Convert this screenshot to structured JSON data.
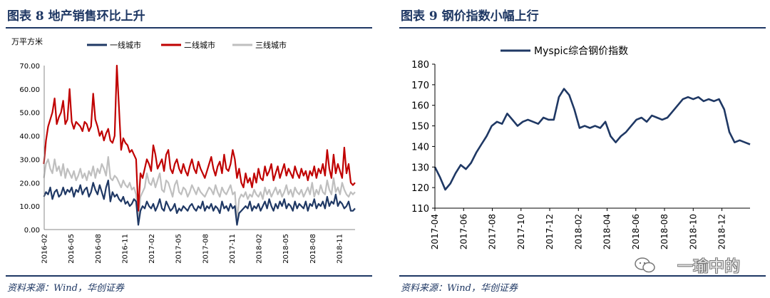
{
  "left": {
    "figure_title": "图表 8   地产销售环比上升",
    "source": "资料来源：Wind，华创证券",
    "unit_label": "万平方米",
    "colors": {
      "series1": "#1f3864",
      "series2": "#c00000",
      "series3": "#bfbfbf",
      "rule": "#1f3864"
    }
  },
  "right": {
    "figure_title": "图表 9   钢价指数小幅上行",
    "source": "资料来源：Wind，华创证券",
    "colors": {
      "series1": "#1f3864",
      "rule": "#1f3864"
    }
  },
  "watermark": {
    "text": "一瑜中的",
    "icon": "wechat-icon"
  },
  "chart_data": [
    {
      "type": "line",
      "title": "地产销售环比上升",
      "ylabel": "万平方米",
      "ylim": [
        0,
        70
      ],
      "yticks": [
        "0.00",
        "10.00",
        "20.00",
        "30.00",
        "40.00",
        "50.00",
        "60.00",
        "70.00"
      ],
      "xticks": [
        "2016-02",
        "2016-05",
        "2016-08",
        "2016-11",
        "2017-02",
        "2017-05",
        "2017-08",
        "2017-11",
        "2018-02",
        "2018-05",
        "2018-08",
        "2018-11"
      ],
      "legend_position": "top",
      "x_start": "2016-02",
      "x": [
        2016.08,
        2016.1,
        2016.12,
        2016.14,
        2016.16,
        2016.18,
        2016.2,
        2016.22,
        2016.24,
        2016.26,
        2016.28,
        2016.3,
        2016.32,
        2016.34,
        2016.36,
        2016.38,
        2016.4,
        2016.42,
        2016.44,
        2016.46,
        2016.48,
        2016.5,
        2016.52,
        2016.54,
        2016.56,
        2016.58,
        2016.6,
        2016.62,
        2016.64,
        2016.66,
        2016.68,
        2016.7,
        2016.72,
        2016.74,
        2016.76,
        2016.78,
        2016.8,
        2016.82,
        2016.84,
        2016.86,
        2016.88,
        2016.9,
        2016.92,
        2016.94,
        2016.96,
        2016.98,
        2017.0,
        2017.02,
        2017.04,
        2017.06,
        2017.08,
        2017.1,
        2017.12,
        2017.14,
        2017.16,
        2017.18,
        2017.2,
        2017.22,
        2017.24,
        2017.26,
        2017.28,
        2017.3,
        2017.32,
        2017.34,
        2017.36,
        2017.38,
        2017.4,
        2017.42,
        2017.44,
        2017.46,
        2017.48,
        2017.5,
        2017.52,
        2017.54,
        2017.56,
        2017.58,
        2017.6,
        2017.62,
        2017.64,
        2017.66,
        2017.68,
        2017.7,
        2017.72,
        2017.74,
        2017.76,
        2017.78,
        2017.8,
        2017.82,
        2017.84,
        2017.86,
        2017.88,
        2017.9,
        2017.92,
        2017.94,
        2017.96,
        2017.98,
        2018.0,
        2018.02,
        2018.04,
        2018.06,
        2018.08,
        2018.1,
        2018.12,
        2018.14,
        2018.16,
        2018.18,
        2018.2,
        2018.22,
        2018.24,
        2018.26,
        2018.28,
        2018.3,
        2018.32,
        2018.34,
        2018.36,
        2018.38,
        2018.4,
        2018.42,
        2018.44,
        2018.46,
        2018.48,
        2018.5,
        2018.52,
        2018.54,
        2018.56,
        2018.58,
        2018.6,
        2018.62,
        2018.64,
        2018.66,
        2018.68,
        2018.7,
        2018.72,
        2018.74,
        2018.76,
        2018.78,
        2018.8,
        2018.82,
        2018.84,
        2018.86,
        2018.88,
        2018.9,
        2018.92,
        2018.94,
        2018.96,
        2018.98
      ],
      "series": [
        {
          "name": "一线城市",
          "values": [
            14,
            16,
            15,
            18,
            13,
            16,
            17,
            14,
            15,
            18,
            15,
            17,
            16,
            18,
            14,
            17,
            16,
            19,
            15,
            17,
            18,
            14,
            16,
            20,
            17,
            15,
            19,
            16,
            13,
            18,
            21,
            12,
            16,
            14,
            15,
            13,
            12,
            14,
            11,
            12,
            10,
            11,
            13,
            12,
            2,
            8,
            10,
            9,
            12,
            10,
            9,
            11,
            8,
            10,
            13,
            9,
            8,
            12,
            10,
            8,
            9,
            11,
            7,
            9,
            8,
            10,
            9,
            8,
            10,
            11,
            9,
            8,
            10,
            9,
            12,
            8,
            10,
            9,
            11,
            8,
            10,
            9,
            7,
            12,
            9,
            10,
            8,
            11,
            9,
            10,
            2,
            7,
            8,
            9,
            10,
            9,
            12,
            8,
            10,
            9,
            11,
            8,
            10,
            12,
            9,
            13,
            10,
            8,
            11,
            9,
            12,
            10,
            13,
            9,
            11,
            10,
            8,
            12,
            9,
            11,
            10,
            9,
            12,
            8,
            11,
            10,
            13,
            9,
            11,
            10,
            12,
            9,
            14,
            10,
            12,
            11,
            15,
            10,
            12,
            11,
            9,
            10,
            12,
            8,
            8,
            9
          ]
        },
        {
          "name": "二线城市",
          "values": [
            28,
            38,
            44,
            47,
            50,
            56,
            45,
            48,
            50,
            55,
            45,
            47,
            60,
            46,
            43,
            46,
            45,
            44,
            42,
            46,
            45,
            42,
            44,
            58,
            47,
            44,
            40,
            42,
            38,
            41,
            43,
            38,
            37,
            40,
            70,
            52,
            34,
            39,
            37,
            36,
            33,
            34,
            32,
            30,
            8,
            24,
            22,
            26,
            30,
            28,
            25,
            36,
            32,
            26,
            28,
            30,
            25,
            32,
            34,
            26,
            24,
            28,
            30,
            26,
            24,
            28,
            25,
            23,
            27,
            30,
            26,
            24,
            29,
            26,
            24,
            22,
            25,
            28,
            31,
            26,
            23,
            27,
            29,
            24,
            32,
            26,
            25,
            28,
            34,
            30,
            22,
            26,
            20,
            18,
            24,
            20,
            22,
            18,
            24,
            20,
            26,
            22,
            21,
            27,
            23,
            25,
            28,
            21,
            24,
            27,
            22,
            25,
            28,
            23,
            26,
            24,
            22,
            27,
            24,
            22,
            26,
            23,
            25,
            21,
            25,
            23,
            27,
            22,
            26,
            24,
            28,
            23,
            34,
            26,
            22,
            32,
            24,
            28,
            25,
            22,
            35,
            24,
            28,
            20,
            19,
            20
          ]
        },
        {
          "name": "三线城市",
          "values": [
            22,
            28,
            30,
            26,
            24,
            30,
            25,
            27,
            23,
            28,
            22,
            26,
            24,
            22,
            25,
            21,
            23,
            26,
            22,
            24,
            21,
            25,
            23,
            27,
            22,
            26,
            24,
            28,
            26,
            23,
            31,
            22,
            21,
            23,
            22,
            20,
            18,
            21,
            19,
            18,
            20,
            17,
            18,
            15,
            3,
            14,
            16,
            18,
            24,
            20,
            19,
            22,
            18,
            21,
            24,
            17,
            16,
            21,
            20,
            17,
            14,
            19,
            21,
            16,
            15,
            18,
            17,
            14,
            16,
            19,
            17,
            15,
            18,
            16,
            15,
            14,
            16,
            18,
            17,
            15,
            19,
            16,
            14,
            18,
            16,
            15,
            17,
            19,
            15,
            16,
            4,
            13,
            15,
            14,
            16,
            13,
            15,
            14,
            17,
            15,
            14,
            16,
            13,
            18,
            15,
            17,
            14,
            16,
            18,
            15,
            17,
            14,
            16,
            19,
            15,
            17,
            14,
            18,
            16,
            15,
            17,
            14,
            16,
            18,
            15,
            20,
            14,
            17,
            15,
            19,
            16,
            15,
            21,
            17,
            15,
            22,
            16,
            18,
            15,
            20,
            17,
            15,
            14,
            16,
            15,
            16
          ]
        }
      ]
    },
    {
      "type": "line",
      "title": "钢价指数小幅上行",
      "ylim": [
        110,
        180
      ],
      "yticks": [
        "110",
        "120",
        "130",
        "140",
        "150",
        "160",
        "170",
        "180"
      ],
      "xticks": [
        "2017-04",
        "2017-06",
        "2017-08",
        "2017-10",
        "2017-12",
        "2018-02",
        "2018-04",
        "2018-06",
        "2018-08",
        "2018-10",
        "2018-12"
      ],
      "legend_position": "top",
      "x_start": "2017-04",
      "x": [
        2017.25,
        2017.28,
        2017.31,
        2017.34,
        2017.37,
        2017.4,
        2017.43,
        2017.46,
        2017.49,
        2017.52,
        2017.55,
        2017.58,
        2017.61,
        2017.64,
        2017.67,
        2017.7,
        2017.73,
        2017.76,
        2017.79,
        2017.82,
        2017.85,
        2017.88,
        2017.91,
        2017.94,
        2017.97,
        2018.0,
        2018.03,
        2018.06,
        2018.09,
        2018.12,
        2018.15,
        2018.18,
        2018.21,
        2018.24,
        2018.27,
        2018.3,
        2018.33,
        2018.36,
        2018.39,
        2018.42,
        2018.45,
        2018.48,
        2018.51,
        2018.54,
        2018.57,
        2018.6,
        2018.63,
        2018.66,
        2018.69,
        2018.72,
        2018.75,
        2018.78,
        2018.81,
        2018.84,
        2018.87,
        2018.9,
        2018.93,
        2018.96,
        2018.99,
        2019.02,
        2019.05,
        2019.08
      ],
      "series": [
        {
          "name": "Myspic综合钢价指数",
          "values": [
            130,
            125,
            119,
            122,
            127,
            131,
            129,
            132,
            137,
            141,
            145,
            150,
            152,
            151,
            156,
            153,
            150,
            152,
            153,
            152,
            151,
            154,
            153,
            153,
            164,
            168,
            165,
            158,
            149,
            150,
            149,
            150,
            149,
            152,
            145,
            142,
            145,
            147,
            150,
            153,
            154,
            152,
            155,
            154,
            153,
            154,
            157,
            160,
            163,
            164,
            163,
            164,
            162,
            163,
            162,
            163,
            158,
            147,
            142,
            143,
            142,
            141
          ]
        }
      ]
    }
  ]
}
